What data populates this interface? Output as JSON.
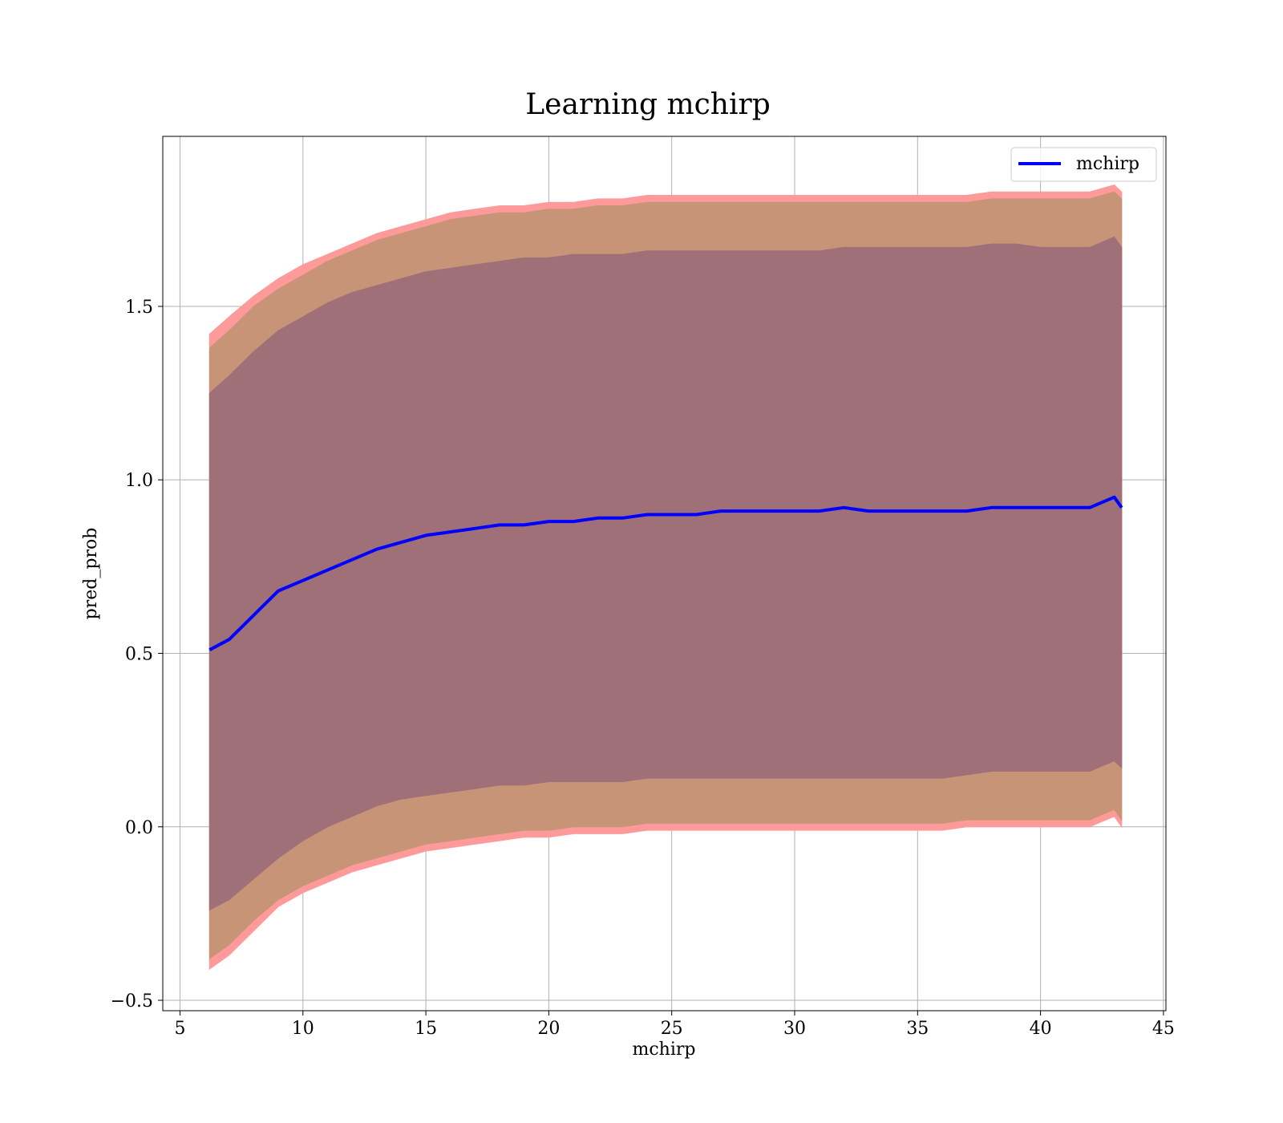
{
  "chart_data": {
    "type": "line",
    "title": "Learning mchirp",
    "xlabel": "mchirp",
    "ylabel": "pred_prob",
    "xlim": [
      4.3,
      45.1
    ],
    "ylim": [
      -0.53,
      1.99
    ],
    "x_ticks": [
      5,
      10,
      15,
      20,
      25,
      30,
      35,
      40,
      45
    ],
    "x_tick_labels": [
      "5",
      "10",
      "15",
      "20",
      "25",
      "30",
      "35",
      "40",
      "45"
    ],
    "y_ticks": [
      -0.5,
      0.0,
      0.5,
      1.0,
      1.5
    ],
    "y_tick_labels": [
      "−0.5",
      "0.0",
      "0.5",
      "1.0",
      "1.5"
    ],
    "grid": true,
    "legend": {
      "position": "top-right",
      "entries": [
        "mchirp"
      ]
    },
    "colors": {
      "line": "#0000ff",
      "outer_band": "#ff9a9a",
      "middle_band": "#c89478",
      "inner_band": "#a07078"
    },
    "x": [
      6.2,
      7,
      8,
      9,
      10,
      11,
      12,
      13,
      14,
      15,
      16,
      17,
      18,
      19,
      20,
      21,
      22,
      23,
      24,
      25,
      26,
      27,
      28,
      29,
      30,
      31,
      32,
      33,
      34,
      35,
      36,
      37,
      38,
      39,
      40,
      41,
      42,
      43,
      43.3
    ],
    "series": [
      {
        "name": "mchirp",
        "values": [
          0.51,
          0.54,
          0.61,
          0.68,
          0.71,
          0.74,
          0.77,
          0.8,
          0.82,
          0.84,
          0.85,
          0.86,
          0.87,
          0.87,
          0.88,
          0.88,
          0.89,
          0.89,
          0.9,
          0.9,
          0.9,
          0.91,
          0.91,
          0.91,
          0.91,
          0.91,
          0.92,
          0.91,
          0.91,
          0.91,
          0.91,
          0.91,
          0.92,
          0.92,
          0.92,
          0.92,
          0.92,
          0.95,
          0.92
        ]
      }
    ],
    "bands": [
      {
        "upper": [
          1.42,
          1.47,
          1.53,
          1.58,
          1.62,
          1.65,
          1.68,
          1.71,
          1.73,
          1.75,
          1.77,
          1.78,
          1.79,
          1.79,
          1.8,
          1.8,
          1.81,
          1.81,
          1.82,
          1.82,
          1.82,
          1.82,
          1.82,
          1.82,
          1.82,
          1.82,
          1.82,
          1.82,
          1.82,
          1.82,
          1.82,
          1.82,
          1.83,
          1.83,
          1.83,
          1.83,
          1.83,
          1.85,
          1.83
        ],
        "lower": [
          -0.41,
          -0.37,
          -0.3,
          -0.23,
          -0.19,
          -0.16,
          -0.13,
          -0.11,
          -0.09,
          -0.07,
          -0.06,
          -0.05,
          -0.04,
          -0.03,
          -0.03,
          -0.02,
          -0.02,
          -0.02,
          -0.01,
          -0.01,
          -0.01,
          -0.01,
          -0.01,
          -0.01,
          -0.01,
          -0.01,
          -0.01,
          -0.01,
          -0.01,
          -0.01,
          -0.01,
          0.0,
          0.0,
          0.0,
          0.0,
          0.0,
          0.0,
          0.03,
          0.0
        ]
      },
      {
        "upper": [
          1.38,
          1.43,
          1.5,
          1.55,
          1.59,
          1.63,
          1.66,
          1.69,
          1.71,
          1.73,
          1.75,
          1.76,
          1.77,
          1.77,
          1.78,
          1.78,
          1.79,
          1.79,
          1.8,
          1.8,
          1.8,
          1.8,
          1.8,
          1.8,
          1.8,
          1.8,
          1.8,
          1.8,
          1.8,
          1.8,
          1.8,
          1.8,
          1.81,
          1.81,
          1.81,
          1.81,
          1.81,
          1.83,
          1.81
        ],
        "lower": [
          -0.38,
          -0.34,
          -0.27,
          -0.21,
          -0.17,
          -0.14,
          -0.11,
          -0.09,
          -0.07,
          -0.05,
          -0.04,
          -0.03,
          -0.02,
          -0.01,
          -0.01,
          0.0,
          0.0,
          0.0,
          0.01,
          0.01,
          0.01,
          0.01,
          0.01,
          0.01,
          0.01,
          0.01,
          0.01,
          0.01,
          0.01,
          0.01,
          0.01,
          0.02,
          0.02,
          0.02,
          0.02,
          0.02,
          0.02,
          0.05,
          0.02
        ]
      },
      {
        "upper": [
          1.25,
          1.3,
          1.37,
          1.43,
          1.47,
          1.51,
          1.54,
          1.56,
          1.58,
          1.6,
          1.61,
          1.62,
          1.63,
          1.64,
          1.64,
          1.65,
          1.65,
          1.65,
          1.66,
          1.66,
          1.66,
          1.66,
          1.66,
          1.66,
          1.66,
          1.66,
          1.67,
          1.67,
          1.67,
          1.67,
          1.67,
          1.67,
          1.68,
          1.68,
          1.67,
          1.67,
          1.67,
          1.7,
          1.67
        ],
        "lower": [
          -0.24,
          -0.21,
          -0.15,
          -0.09,
          -0.04,
          0.0,
          0.03,
          0.06,
          0.08,
          0.09,
          0.1,
          0.11,
          0.12,
          0.12,
          0.13,
          0.13,
          0.13,
          0.13,
          0.14,
          0.14,
          0.14,
          0.14,
          0.14,
          0.14,
          0.14,
          0.14,
          0.14,
          0.14,
          0.14,
          0.14,
          0.14,
          0.15,
          0.16,
          0.16,
          0.16,
          0.16,
          0.16,
          0.19,
          0.17
        ]
      }
    ]
  }
}
